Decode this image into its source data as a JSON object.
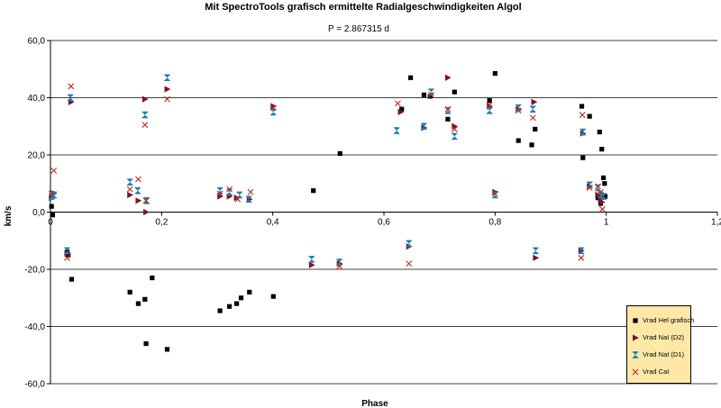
{
  "chart_data": {
    "type": "scatter",
    "title": "Mit SpectroTools grafisch ermittelte Radialgeschwindigkeiten Algol",
    "subtitle": "P = 2.867315 d",
    "xlabel": "Phase",
    "ylabel": "km/s",
    "xlim": [
      0,
      1.2
    ],
    "ylim": [
      -60,
      60
    ],
    "xticks": [
      "0",
      "0,2",
      "0,4",
      "0,6",
      "0,8",
      "1",
      "1,2"
    ],
    "yticks": [
      "60,0",
      "40,0",
      "20,0",
      "0,0",
      "-20,0",
      "-40,0",
      "-60,0"
    ],
    "grid": "horizontal",
    "legend_position": "bottom-right",
    "series": [
      {
        "name": "Vrad Hel grafisch",
        "marker": "square",
        "color": "#000000",
        "points": [
          [
            0.002,
            2
          ],
          [
            0.004,
            -1
          ],
          [
            0.03,
            -14
          ],
          [
            0.032,
            -15
          ],
          [
            0.038,
            -23.5
          ],
          [
            0.143,
            -28
          ],
          [
            0.158,
            -32
          ],
          [
            0.17,
            -30.5
          ],
          [
            0.172,
            -46
          ],
          [
            0.183,
            -23
          ],
          [
            0.21,
            -48
          ],
          [
            0.305,
            -34.5
          ],
          [
            0.322,
            -33
          ],
          [
            0.335,
            -32
          ],
          [
            0.343,
            -30
          ],
          [
            0.358,
            -28
          ],
          [
            0.401,
            -29.5
          ],
          [
            0.473,
            7.5
          ],
          [
            0.521,
            20.5
          ],
          [
            0.632,
            36
          ],
          [
            0.648,
            47
          ],
          [
            0.672,
            41
          ],
          [
            0.683,
            40.5
          ],
          [
            0.715,
            32.5
          ],
          [
            0.727,
            42
          ],
          [
            0.79,
            39
          ],
          [
            0.8,
            48.5
          ],
          [
            0.842,
            25
          ],
          [
            0.866,
            23.5
          ],
          [
            0.872,
            29
          ],
          [
            0.956,
            37
          ],
          [
            0.958,
            19
          ],
          [
            0.97,
            33.5
          ],
          [
            0.985,
            5
          ],
          [
            0.988,
            28
          ],
          [
            0.99,
            3
          ],
          [
            0.992,
            22
          ],
          [
            0.995,
            12
          ],
          [
            0.997,
            10
          ],
          [
            0.998,
            5.5
          ]
        ]
      },
      {
        "name": "Vrad NaI (D2)",
        "marker": "triangle-right",
        "color": "#7a1428",
        "points": [
          [
            0.002,
            5
          ],
          [
            0.006,
            6.5
          ],
          [
            0.03,
            -14.5
          ],
          [
            0.037,
            38.5
          ],
          [
            0.143,
            6
          ],
          [
            0.158,
            4
          ],
          [
            0.17,
            39.5
          ],
          [
            0.172,
            0
          ],
          [
            0.21,
            43
          ],
          [
            0.305,
            5.5
          ],
          [
            0.322,
            5.5
          ],
          [
            0.335,
            5
          ],
          [
            0.358,
            4.5
          ],
          [
            0.401,
            37
          ],
          [
            0.47,
            -18.5
          ],
          [
            0.52,
            -18
          ],
          [
            0.63,
            35
          ],
          [
            0.645,
            -12
          ],
          [
            0.672,
            29.5
          ],
          [
            0.715,
            47
          ],
          [
            0.727,
            30
          ],
          [
            0.79,
            37
          ],
          [
            0.8,
            7
          ],
          [
            0.842,
            36
          ],
          [
            0.87,
            38.5
          ],
          [
            0.873,
            -16
          ],
          [
            0.955,
            -13.5
          ],
          [
            0.958,
            27.5
          ],
          [
            0.97,
            9
          ],
          [
            0.985,
            6
          ],
          [
            0.99,
            4.5
          ],
          [
            0.992,
            3.5
          ],
          [
            0.995,
            5
          ]
        ]
      },
      {
        "name": "Vrad NaI (D1)",
        "marker": "hourglass",
        "color": "#1a7fb3",
        "points": [
          [
            0.002,
            5.5
          ],
          [
            0.006,
            6
          ],
          [
            0.03,
            -13.5
          ],
          [
            0.036,
            40
          ],
          [
            0.143,
            10.5
          ],
          [
            0.157,
            7.5
          ],
          [
            0.17,
            34
          ],
          [
            0.173,
            4
          ],
          [
            0.21,
            47
          ],
          [
            0.305,
            7.5
          ],
          [
            0.322,
            7
          ],
          [
            0.34,
            6
          ],
          [
            0.357,
            4.5
          ],
          [
            0.401,
            35
          ],
          [
            0.47,
            -16.5
          ],
          [
            0.52,
            -17.5
          ],
          [
            0.623,
            28.5
          ],
          [
            0.645,
            -11
          ],
          [
            0.672,
            30
          ],
          [
            0.685,
            42
          ],
          [
            0.715,
            35.5
          ],
          [
            0.727,
            26.5
          ],
          [
            0.79,
            35.5
          ],
          [
            0.8,
            6
          ],
          [
            0.842,
            36.5
          ],
          [
            0.868,
            36
          ],
          [
            0.873,
            -13.5
          ],
          [
            0.955,
            -13.5
          ],
          [
            0.958,
            28
          ],
          [
            0.97,
            9.5
          ],
          [
            0.985,
            8.5
          ],
          [
            0.99,
            6
          ],
          [
            0.995,
            5.5
          ]
        ]
      },
      {
        "name": "Vrad CaI",
        "marker": "x",
        "color": "#c0281f",
        "points": [
          [
            0.002,
            6.5
          ],
          [
            0.006,
            14.5
          ],
          [
            0.03,
            -16
          ],
          [
            0.037,
            44
          ],
          [
            0.143,
            8
          ],
          [
            0.158,
            11.5
          ],
          [
            0.17,
            30.5
          ],
          [
            0.172,
            4
          ],
          [
            0.21,
            39.5
          ],
          [
            0.305,
            6.5
          ],
          [
            0.322,
            8
          ],
          [
            0.337,
            4.5
          ],
          [
            0.36,
            7
          ],
          [
            0.401,
            36.5
          ],
          [
            0.52,
            -19
          ],
          [
            0.625,
            38
          ],
          [
            0.645,
            -18
          ],
          [
            0.685,
            41
          ],
          [
            0.715,
            36
          ],
          [
            0.727,
            29
          ],
          [
            0.79,
            37.5
          ],
          [
            0.8,
            6.5
          ],
          [
            0.842,
            35.5
          ],
          [
            0.868,
            33
          ],
          [
            0.955,
            -16
          ],
          [
            0.957,
            34
          ],
          [
            0.97,
            8.5
          ],
          [
            0.985,
            9
          ],
          [
            0.99,
            7
          ],
          [
            0.993,
            1
          ]
        ]
      }
    ]
  }
}
